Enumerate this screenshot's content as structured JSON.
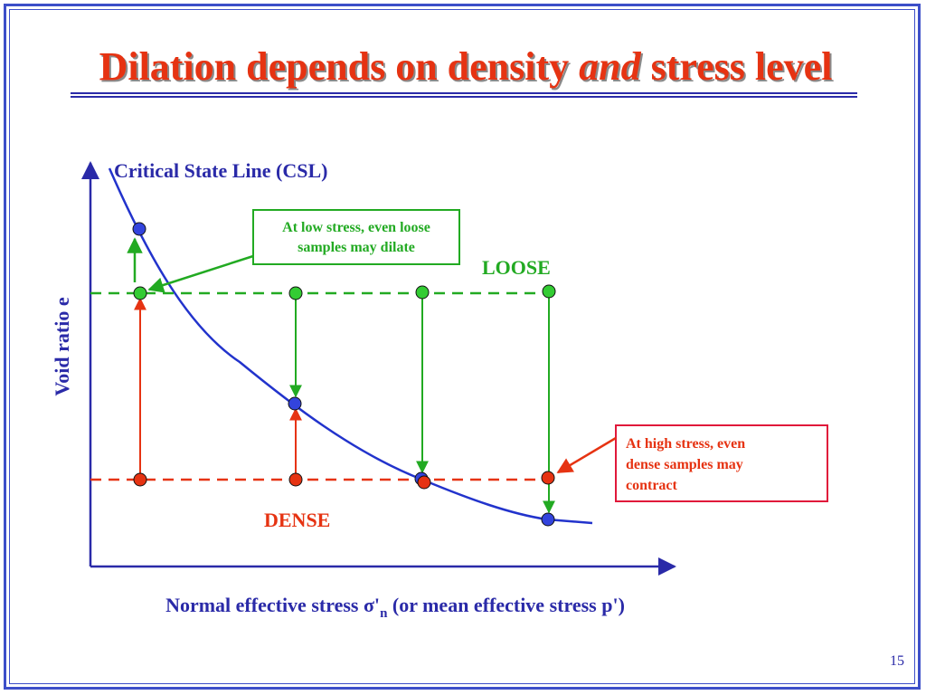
{
  "title": {
    "before": "Dilation depends on density ",
    "italic": "and",
    "after": " stress level"
  },
  "page_number": "15",
  "diagram": {
    "csl_label": "Critical State Line (CSL)",
    "y_axis_label": "Void ratio e",
    "x_axis_label": {
      "main": "Normal effective stress ",
      "symbol": "σ'",
      "subscript": "n",
      "rest": " (or mean effective stress p')"
    },
    "loose_label": "LOOSE",
    "dense_label": "DENSE",
    "callout_low": {
      "line1": "At low stress, even loose",
      "line2": "samples may dilate"
    },
    "callout_high": {
      "line1": "At high stress, even",
      "line2": "dense samples may",
      "line3": "contract"
    },
    "colors": {
      "axis": "#2a2aa8",
      "csl": "#2233cc",
      "loose": "#22aa22",
      "dense": "#e63312",
      "callout_low_border": "#22aa22",
      "callout_high_border": "#e0183a",
      "title": "#e63312"
    }
  }
}
